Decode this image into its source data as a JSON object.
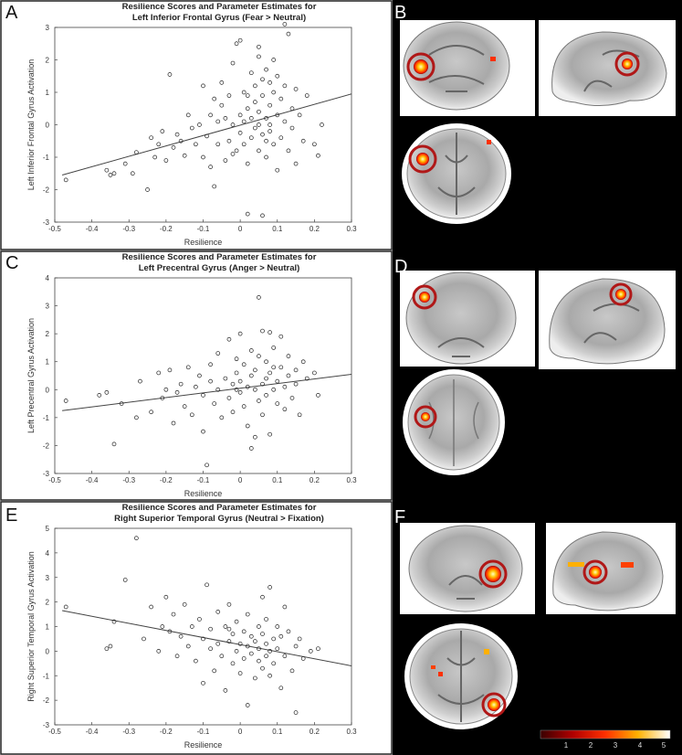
{
  "panel_letters": [
    "A",
    "B",
    "C",
    "D",
    "E",
    "F"
  ],
  "colorbar": {
    "ticks": [
      "1",
      "2",
      "3",
      "4",
      "5"
    ]
  },
  "chart_data": [
    {
      "type": "scatter",
      "panel": "A",
      "title_line1": "Resilience Scores and Parameter Estimates for",
      "title_line2": "Left Inferior Frontal Gyrus (Fear > Neutral)",
      "xlabel": "Resilience",
      "ylabel": "Left Inferior Frontal Gyrus Activation",
      "xlim": [
        -0.5,
        0.3
      ],
      "ylim": [
        -3,
        3
      ],
      "xticks": [
        "-0.5",
        "-0.4",
        "-0.3",
        "-0.2",
        "-0.1",
        "0",
        "0.1",
        "0.2",
        "0.3"
      ],
      "yticks": [
        "-3",
        "-2",
        "-1",
        "0",
        "1",
        "2",
        "3"
      ],
      "fit_line": [
        [
          -0.48,
          -1.55
        ],
        [
          0.3,
          0.95
        ]
      ],
      "points": [
        [
          -0.47,
          -1.7
        ],
        [
          -0.36,
          -1.4
        ],
        [
          -0.35,
          -1.55
        ],
        [
          -0.34,
          -1.5
        ],
        [
          -0.31,
          -1.2
        ],
        [
          -0.29,
          -1.5
        ],
        [
          -0.28,
          -0.85
        ],
        [
          -0.25,
          -2.0
        ],
        [
          -0.24,
          -0.4
        ],
        [
          -0.23,
          -1.0
        ],
        [
          -0.22,
          -0.6
        ],
        [
          -0.21,
          -0.2
        ],
        [
          -0.2,
          -1.1
        ],
        [
          -0.19,
          1.55
        ],
        [
          -0.18,
          -0.7
        ],
        [
          -0.17,
          -0.3
        ],
        [
          -0.16,
          -0.5
        ],
        [
          -0.15,
          -0.95
        ],
        [
          -0.14,
          0.3
        ],
        [
          -0.13,
          -0.1
        ],
        [
          -0.12,
          -0.6
        ],
        [
          -0.11,
          0.0
        ],
        [
          -0.1,
          -1.0
        ],
        [
          -0.1,
          1.2
        ],
        [
          -0.09,
          -0.35
        ],
        [
          -0.08,
          0.3
        ],
        [
          -0.08,
          -1.3
        ],
        [
          -0.07,
          0.8
        ],
        [
          -0.07,
          -1.9
        ],
        [
          -0.06,
          0.1
        ],
        [
          -0.06,
          -0.6
        ],
        [
          -0.05,
          1.3
        ],
        [
          -0.05,
          0.6
        ],
        [
          -0.04,
          -1.1
        ],
        [
          -0.04,
          0.2
        ],
        [
          -0.03,
          -0.5
        ],
        [
          -0.03,
          0.9
        ],
        [
          -0.02,
          1.9
        ],
        [
          -0.02,
          0.0
        ],
        [
          -0.01,
          -0.8
        ],
        [
          -0.01,
          2.5
        ],
        [
          0.0,
          0.3
        ],
        [
          0.0,
          -0.25
        ],
        [
          0.0,
          2.6
        ],
        [
          0.01,
          1.0
        ],
        [
          0.01,
          -0.6
        ],
        [
          0.01,
          0.1
        ],
        [
          0.02,
          0.5
        ],
        [
          0.02,
          -1.2
        ],
        [
          0.02,
          -2.75
        ],
        [
          0.03,
          1.6
        ],
        [
          0.03,
          0.2
        ],
        [
          0.03,
          -0.4
        ],
        [
          0.04,
          0.7
        ],
        [
          0.04,
          -0.1
        ],
        [
          0.04,
          1.2
        ],
        [
          0.05,
          0.4
        ],
        [
          0.05,
          -0.8
        ],
        [
          0.05,
          2.1
        ],
        [
          0.05,
          0.0
        ],
        [
          0.06,
          1.4
        ],
        [
          0.06,
          -0.3
        ],
        [
          0.06,
          0.9
        ],
        [
          0.06,
          -2.8
        ],
        [
          0.07,
          0.2
        ],
        [
          0.07,
          -0.5
        ],
        [
          0.07,
          1.7
        ],
        [
          0.07,
          -1.0
        ],
        [
          0.08,
          0.6
        ],
        [
          0.08,
          1.3
        ],
        [
          0.08,
          -0.2
        ],
        [
          0.08,
          0.0
        ],
        [
          0.09,
          1.0
        ],
        [
          0.09,
          -0.6
        ],
        [
          0.09,
          2.0
        ],
        [
          0.1,
          0.3
        ],
        [
          0.1,
          -1.4
        ],
        [
          0.1,
          1.5
        ],
        [
          0.11,
          0.8
        ],
        [
          0.11,
          -0.4
        ],
        [
          0.12,
          1.2
        ],
        [
          0.12,
          0.1
        ],
        [
          0.13,
          -0.8
        ],
        [
          0.13,
          2.8
        ],
        [
          0.14,
          0.5
        ],
        [
          0.14,
          -0.1
        ],
        [
          0.15,
          1.1
        ],
        [
          0.15,
          -1.2
        ],
        [
          0.16,
          0.3
        ],
        [
          0.17,
          -0.5
        ],
        [
          0.18,
          0.9
        ],
        [
          0.2,
          -0.6
        ],
        [
          0.21,
          -0.95
        ],
        [
          0.22,
          0.0
        ],
        [
          0.05,
          2.4
        ],
        [
          0.02,
          0.9
        ],
        [
          -0.02,
          -0.9
        ],
        [
          0.12,
          3.1
        ]
      ]
    },
    {
      "type": "scatter",
      "panel": "C",
      "title_line1": "Resilience Scores and Parameter Estimates for",
      "title_line2": "Left Precentral Gyrus (Anger > Neutral)",
      "xlabel": "Resilience",
      "ylabel": "Left Precentral Gyrus Activation",
      "xlim": [
        -0.5,
        0.3
      ],
      "ylim": [
        -3,
        4
      ],
      "xticks": [
        "-0.5",
        "-0.4",
        "-0.3",
        "-0.2",
        "-0.1",
        "0",
        "0.1",
        "0.2",
        "0.3"
      ],
      "yticks": [
        "-3",
        "-2",
        "-1",
        "0",
        "1",
        "2",
        "3",
        "4"
      ],
      "fit_line": [
        [
          -0.48,
          -0.75
        ],
        [
          0.3,
          0.55
        ]
      ],
      "points": [
        [
          -0.47,
          -0.4
        ],
        [
          -0.38,
          -0.2
        ],
        [
          -0.36,
          -0.1
        ],
        [
          -0.34,
          -1.95
        ],
        [
          -0.32,
          -0.5
        ],
        [
          -0.28,
          -1.0
        ],
        [
          -0.27,
          0.3
        ],
        [
          -0.24,
          -0.8
        ],
        [
          -0.22,
          0.6
        ],
        [
          -0.21,
          -0.3
        ],
        [
          -0.2,
          0.0
        ],
        [
          -0.19,
          0.7
        ],
        [
          -0.18,
          -1.2
        ],
        [
          -0.17,
          -0.1
        ],
        [
          -0.16,
          0.2
        ],
        [
          -0.15,
          -0.6
        ],
        [
          -0.14,
          0.8
        ],
        [
          -0.13,
          -0.9
        ],
        [
          -0.12,
          0.1
        ],
        [
          -0.11,
          0.5
        ],
        [
          -0.1,
          -0.2
        ],
        [
          -0.1,
          -1.5
        ],
        [
          -0.09,
          -2.7
        ],
        [
          -0.08,
          0.3
        ],
        [
          -0.08,
          0.9
        ],
        [
          -0.07,
          -0.5
        ],
        [
          -0.06,
          0.0
        ],
        [
          -0.06,
          1.3
        ],
        [
          -0.05,
          -1.0
        ],
        [
          -0.04,
          0.4
        ],
        [
          -0.03,
          -0.3
        ],
        [
          -0.03,
          1.8
        ],
        [
          -0.02,
          0.2
        ],
        [
          -0.02,
          -0.8
        ],
        [
          -0.01,
          0.6
        ],
        [
          -0.01,
          1.1
        ],
        [
          0.0,
          -0.1
        ],
        [
          0.0,
          0.3
        ],
        [
          0.0,
          2.0
        ],
        [
          0.01,
          -0.6
        ],
        [
          0.01,
          0.9
        ],
        [
          0.02,
          0.1
        ],
        [
          0.02,
          -1.3
        ],
        [
          0.03,
          0.5
        ],
        [
          0.03,
          1.4
        ],
        [
          0.03,
          -2.1
        ],
        [
          0.04,
          0.0
        ],
        [
          0.04,
          0.7
        ],
        [
          0.05,
          -0.4
        ],
        [
          0.05,
          1.2
        ],
        [
          0.05,
          3.3
        ],
        [
          0.06,
          0.2
        ],
        [
          0.06,
          2.1
        ],
        [
          0.06,
          -0.9
        ],
        [
          0.07,
          0.4
        ],
        [
          0.07,
          1.0
        ],
        [
          0.07,
          -0.2
        ],
        [
          0.08,
          0.6
        ],
        [
          0.08,
          2.05
        ],
        [
          0.08,
          -1.6
        ],
        [
          0.09,
          0.0
        ],
        [
          0.09,
          1.5
        ],
        [
          0.1,
          0.3
        ],
        [
          0.1,
          -0.5
        ],
        [
          0.11,
          0.8
        ],
        [
          0.11,
          1.9
        ],
        [
          0.12,
          0.1
        ],
        [
          0.12,
          -0.7
        ],
        [
          0.13,
          0.5
        ],
        [
          0.13,
          1.2
        ],
        [
          0.14,
          -0.3
        ],
        [
          0.15,
          0.7
        ],
        [
          0.15,
          0.2
        ],
        [
          0.16,
          -0.9
        ],
        [
          0.17,
          1.0
        ],
        [
          0.18,
          0.4
        ],
        [
          0.2,
          0.6
        ],
        [
          0.21,
          -0.2
        ],
        [
          0.04,
          -1.7
        ],
        [
          -0.01,
          0.0
        ],
        [
          0.09,
          0.8
        ]
      ]
    },
    {
      "type": "scatter",
      "panel": "E",
      "title_line1": "Resilience Scores and Parameter Estimates for",
      "title_line2": "Right Superior Temporal Gyrus (Neutral > Fixation)",
      "xlabel": "Resilience",
      "ylabel": "Right Superior Temporal Gyrus Activation",
      "xlim": [
        -0.5,
        0.3
      ],
      "ylim": [
        -3,
        5
      ],
      "xticks": [
        "-0.5",
        "-0.4",
        "-0.3",
        "-0.2",
        "-0.1",
        "0",
        "0.1",
        "0.2",
        "0.3"
      ],
      "yticks": [
        "-3",
        "-2",
        "-1",
        "0",
        "1",
        "2",
        "3",
        "4",
        "5"
      ],
      "fit_line": [
        [
          -0.48,
          1.65
        ],
        [
          0.3,
          -0.6
        ]
      ],
      "points": [
        [
          -0.47,
          1.8
        ],
        [
          -0.36,
          0.1
        ],
        [
          -0.35,
          0.2
        ],
        [
          -0.34,
          1.2
        ],
        [
          -0.31,
          2.9
        ],
        [
          -0.28,
          4.6
        ],
        [
          -0.26,
          0.5
        ],
        [
          -0.24,
          1.8
        ],
        [
          -0.22,
          0.0
        ],
        [
          -0.21,
          1.0
        ],
        [
          -0.2,
          2.2
        ],
        [
          -0.19,
          0.8
        ],
        [
          -0.18,
          1.5
        ],
        [
          -0.17,
          -0.2
        ],
        [
          -0.16,
          0.6
        ],
        [
          -0.15,
          1.9
        ],
        [
          -0.14,
          0.2
        ],
        [
          -0.13,
          1.0
        ],
        [
          -0.12,
          -0.4
        ],
        [
          -0.11,
          1.3
        ],
        [
          -0.1,
          0.5
        ],
        [
          -0.1,
          -1.3
        ],
        [
          -0.09,
          2.7
        ],
        [
          -0.08,
          0.1
        ],
        [
          -0.08,
          0.9
        ],
        [
          -0.07,
          -0.8
        ],
        [
          -0.06,
          1.6
        ],
        [
          -0.06,
          0.3
        ],
        [
          -0.05,
          -0.2
        ],
        [
          -0.04,
          1.0
        ],
        [
          -0.04,
          -1.6
        ],
        [
          -0.03,
          0.4
        ],
        [
          -0.03,
          1.9
        ],
        [
          -0.02,
          -0.5
        ],
        [
          -0.02,
          0.7
        ],
        [
          -0.01,
          0.0
        ],
        [
          -0.01,
          1.2
        ],
        [
          0.0,
          -0.9
        ],
        [
          0.0,
          0.3
        ],
        [
          0.01,
          0.8
        ],
        [
          0.01,
          -0.3
        ],
        [
          0.02,
          0.2
        ],
        [
          0.02,
          1.5
        ],
        [
          0.03,
          -0.1
        ],
        [
          0.03,
          0.6
        ],
        [
          0.04,
          -1.1
        ],
        [
          0.04,
          0.4
        ],
        [
          0.05,
          1.0
        ],
        [
          0.05,
          -0.4
        ],
        [
          0.05,
          0.1
        ],
        [
          0.06,
          0.7
        ],
        [
          0.06,
          -0.7
        ],
        [
          0.06,
          2.2
        ],
        [
          0.07,
          0.3
        ],
        [
          0.07,
          -0.2
        ],
        [
          0.07,
          1.3
        ],
        [
          0.08,
          0.0
        ],
        [
          0.08,
          -1.0
        ],
        [
          0.08,
          2.6
        ],
        [
          0.09,
          0.5
        ],
        [
          0.09,
          -0.5
        ],
        [
          0.1,
          1.0
        ],
        [
          0.1,
          0.1
        ],
        [
          0.11,
          -1.5
        ],
        [
          0.11,
          0.6
        ],
        [
          0.12,
          -0.2
        ],
        [
          0.13,
          0.8
        ],
        [
          0.14,
          -0.8
        ],
        [
          0.15,
          0.2
        ],
        [
          0.15,
          -2.5
        ],
        [
          0.16,
          0.5
        ],
        [
          0.17,
          -0.3
        ],
        [
          0.19,
          0.0
        ],
        [
          0.21,
          0.1
        ],
        [
          0.02,
          -2.2
        ],
        [
          0.12,
          1.8
        ],
        [
          -0.03,
          0.9
        ]
      ]
    }
  ]
}
